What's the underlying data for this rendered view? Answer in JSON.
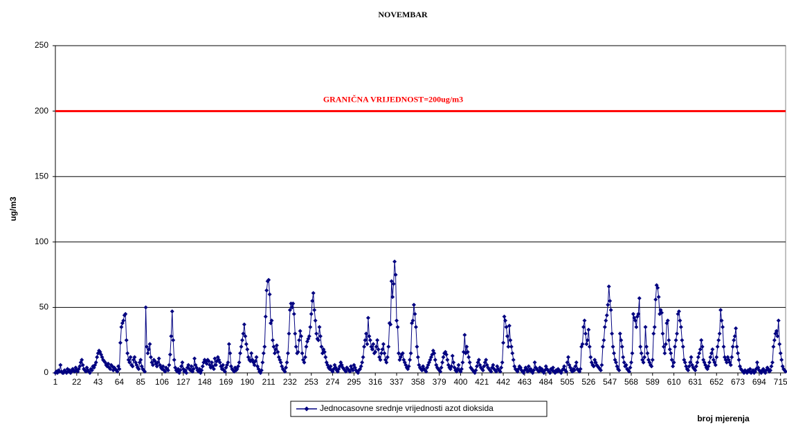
{
  "chart_data": {
    "type": "line",
    "title": "NOVEMBAR",
    "y_label": "ug/m3",
    "x_label": "broj mjerenja",
    "xlim": [
      1,
      720
    ],
    "xticks": [
      1,
      22,
      43,
      64,
      85,
      106,
      127,
      148,
      169,
      190,
      211,
      232,
      253,
      274,
      295,
      316,
      337,
      358,
      379,
      400,
      421,
      442,
      463,
      484,
      505,
      526,
      547,
      568,
      589,
      610,
      631,
      652,
      673,
      694,
      715
    ],
    "ylim": [
      0,
      250
    ],
    "yticks": [
      0,
      50,
      100,
      150,
      200,
      250
    ],
    "grid": true,
    "hlines": [
      {
        "value": 200,
        "label": "GRANIČNA VRIJEDNOST=200ug/m3",
        "color": "#ff0000"
      }
    ],
    "legend": "bottom",
    "x": [
      1,
      2,
      3,
      4,
      5,
      6,
      7,
      8,
      9,
      10,
      11,
      12,
      13,
      14,
      15,
      16,
      17,
      18,
      19,
      20,
      21,
      22,
      23,
      24,
      25,
      26,
      27,
      28,
      29,
      30,
      31,
      32,
      33,
      34,
      35,
      36,
      37,
      38,
      39,
      40,
      41,
      42,
      43,
      44,
      45,
      46,
      47,
      48,
      49,
      50,
      51,
      52,
      53,
      54,
      55,
      56,
      57,
      58,
      59,
      60,
      61,
      62,
      63,
      64,
      65,
      66,
      67,
      68,
      69,
      70,
      71,
      72,
      73,
      74,
      75,
      76,
      77,
      78,
      79,
      80,
      81,
      82,
      83,
      84,
      85,
      86,
      87,
      88,
      89,
      90,
      91,
      92,
      93,
      94,
      95,
      96,
      97,
      98,
      99,
      100,
      101,
      102,
      103,
      104,
      105,
      106,
      107,
      108,
      109,
      110,
      111,
      112,
      113,
      114,
      115,
      116,
      117,
      118,
      119,
      120,
      121,
      122,
      123,
      124,
      125,
      126,
      127,
      128,
      129,
      130,
      131,
      132,
      133,
      134,
      135,
      136,
      137,
      138,
      139,
      140,
      141,
      142,
      143,
      144,
      145,
      146,
      147,
      148,
      149,
      150,
      151,
      152,
      153,
      154,
      155,
      156,
      157,
      158,
      159,
      160,
      161,
      162,
      163,
      164,
      165,
      166,
      167,
      168,
      169,
      170,
      171,
      172,
      173,
      174,
      175,
      176,
      177,
      178,
      179,
      180,
      181,
      182,
      183,
      184,
      185,
      186,
      187,
      188,
      189,
      190,
      191,
      192,
      193,
      194,
      195,
      196,
      197,
      198,
      199,
      200,
      201,
      202,
      203,
      204,
      205,
      206,
      207,
      208,
      209,
      210,
      211,
      212,
      213,
      214,
      215,
      216,
      217,
      218,
      219,
      220,
      221,
      222,
      223,
      224,
      225,
      226,
      227,
      228,
      229,
      230,
      231,
      232,
      233,
      234,
      235,
      236,
      237,
      238,
      239,
      240,
      241,
      242,
      243,
      244,
      245,
      246,
      247,
      248,
      249,
      250,
      251,
      252,
      253,
      254,
      255,
      256,
      257,
      258,
      259,
      260,
      261,
      262,
      263,
      264,
      265,
      266,
      267,
      268,
      269,
      270,
      271,
      272,
      273,
      274,
      275,
      276,
      277,
      278,
      279,
      280,
      281,
      282,
      283,
      284,
      285,
      286,
      287,
      288,
      289,
      290,
      291,
      292,
      293,
      294,
      295,
      296,
      297,
      298,
      299,
      300,
      301,
      302,
      303,
      304,
      305,
      306,
      307,
      308,
      309,
      310,
      311,
      312,
      313,
      314,
      315,
      316,
      317,
      318,
      319,
      320,
      321,
      322,
      323,
      324,
      325,
      326,
      327,
      328,
      329,
      330,
      331,
      332,
      333,
      334,
      335,
      336,
      337,
      338,
      339,
      340,
      341,
      342,
      343,
      344,
      345,
      346,
      347,
      348,
      349,
      350,
      351,
      352,
      353,
      354,
      355,
      356,
      357,
      358,
      359,
      360,
      361,
      362,
      363,
      364,
      365,
      366,
      367,
      368,
      369,
      370,
      371,
      372,
      373,
      374,
      375,
      376,
      377,
      378,
      379,
      380,
      381,
      382,
      383,
      384,
      385,
      386,
      387,
      388,
      389,
      390,
      391,
      392,
      393,
      394,
      395,
      396,
      397,
      398,
      399,
      400,
      401,
      402,
      403,
      404,
      405,
      406,
      407,
      408,
      409,
      410,
      411,
      412,
      413,
      414,
      415,
      416,
      417,
      418,
      419,
      420,
      421,
      422,
      423,
      424,
      425,
      426,
      427,
      428,
      429,
      430,
      431,
      432,
      433,
      434,
      435,
      436,
      437,
      438,
      439,
      440,
      441,
      442,
      443,
      444,
      445,
      446,
      447,
      448,
      449,
      450,
      451,
      452,
      453,
      454,
      455,
      456,
      457,
      458,
      459,
      460,
      461,
      462,
      463,
      464,
      465,
      466,
      467,
      468,
      469,
      470,
      471,
      472,
      473,
      474,
      475,
      476,
      477,
      478,
      479,
      480,
      481,
      482,
      483,
      484,
      485,
      486,
      487,
      488,
      489,
      490,
      491,
      492,
      493,
      494,
      495,
      496,
      497,
      498,
      499,
      500,
      501,
      502,
      503,
      504,
      505,
      506,
      507,
      508,
      509,
      510,
      511,
      512,
      513,
      514,
      515,
      516,
      517,
      518,
      519,
      520,
      521,
      522,
      523,
      524,
      525,
      526,
      527,
      528,
      529,
      530,
      531,
      532,
      533,
      534,
      535,
      536,
      537,
      538,
      539,
      540,
      541,
      542,
      543,
      544,
      545,
      546,
      547,
      548,
      549,
      550,
      551,
      552,
      553,
      554,
      555,
      556,
      557,
      558,
      559,
      560,
      561,
      562,
      563,
      564,
      565,
      566,
      567,
      568,
      569,
      570,
      571,
      572,
      573,
      574,
      575,
      576,
      577,
      578,
      579,
      580,
      581,
      582,
      583,
      584,
      585,
      586,
      587,
      588,
      589,
      590,
      591,
      592,
      593,
      594,
      595,
      596,
      597,
      598,
      599,
      600,
      601,
      602,
      603,
      604,
      605,
      606,
      607,
      608,
      609,
      610,
      611,
      612,
      613,
      614,
      615,
      616,
      617,
      618,
      619,
      620,
      621,
      622,
      623,
      624,
      625,
      626,
      627,
      628,
      629,
      630,
      631,
      632,
      633,
      634,
      635,
      636,
      637,
      638,
      639,
      640,
      641,
      642,
      643,
      644,
      645,
      646,
      647,
      648,
      649,
      650,
      651,
      652,
      653,
      654,
      655,
      656,
      657,
      658,
      659,
      660,
      661,
      662,
      663,
      664,
      665,
      666,
      667,
      668,
      669,
      670,
      671,
      672,
      673,
      674,
      675,
      676,
      677,
      678,
      679,
      680,
      681,
      682,
      683,
      684,
      685,
      686,
      687,
      688,
      689,
      690,
      691,
      692,
      693,
      694,
      695,
      696,
      697,
      698,
      699,
      700,
      701,
      702,
      703,
      704,
      705,
      706,
      707,
      708,
      709,
      710,
      711,
      712,
      713,
      714,
      715,
      716,
      717,
      718,
      719,
      720
    ],
    "series": [
      {
        "name": "Jednocasovne srednje vrijednosti azot dioksida",
        "color": "#000080",
        "values": [
          0,
          1,
          0,
          2,
          1,
          6,
          1,
          0,
          0,
          2,
          1,
          0,
          3,
          1,
          2,
          0,
          1,
          3,
          2,
          1,
          4,
          2,
          1,
          3,
          5,
          8,
          10,
          6,
          3,
          2,
          1,
          4,
          2,
          1,
          0,
          3,
          2,
          5,
          4,
          6,
          8,
          12,
          15,
          17,
          16,
          14,
          12,
          10,
          9,
          8,
          6,
          5,
          7,
          4,
          3,
          6,
          5,
          2,
          4,
          3,
          2,
          1,
          5,
          3,
          23,
          35,
          38,
          40,
          44,
          45,
          25,
          15,
          10,
          8,
          12,
          6,
          5,
          10,
          12,
          8,
          6,
          4,
          3,
          8,
          10,
          5,
          3,
          2,
          1,
          50,
          20,
          15,
          18,
          22,
          12,
          8,
          6,
          10,
          9,
          7,
          5,
          8,
          11,
          6,
          4,
          3,
          5,
          2,
          1,
          4,
          3,
          2,
          6,
          14,
          28,
          47,
          25,
          10,
          4,
          2,
          1,
          3,
          0,
          2,
          5,
          8,
          3,
          1,
          2,
          0,
          4,
          6,
          3,
          2,
          5,
          1,
          3,
          11,
          6,
          4,
          2,
          1,
          3,
          0,
          2,
          5,
          8,
          10,
          9,
          7,
          10,
          9,
          6,
          4,
          8,
          5,
          3,
          11,
          6,
          9,
          12,
          10,
          8,
          5,
          3,
          6,
          2,
          1,
          4,
          6,
          8,
          22,
          15,
          5,
          3,
          2,
          1,
          4,
          2,
          3,
          5,
          8,
          15,
          20,
          25,
          30,
          37,
          28,
          22,
          18,
          12,
          10,
          9,
          15,
          10,
          8,
          6,
          9,
          12,
          5,
          3,
          1,
          0,
          2,
          8,
          15,
          20,
          43,
          63,
          70,
          71,
          60,
          38,
          40,
          25,
          20,
          15,
          18,
          21,
          16,
          12,
          10,
          8,
          5,
          3,
          2,
          1,
          4,
          8,
          15,
          30,
          48,
          53,
          50,
          53,
          45,
          30,
          20,
          15,
          16,
          25,
          32,
          28,
          15,
          10,
          8,
          12,
          20,
          24,
          26,
          28,
          35,
          45,
          55,
          61,
          48,
          40,
          30,
          26,
          25,
          35,
          28,
          20,
          15,
          18,
          16,
          12,
          8,
          6,
          4,
          3,
          5,
          2,
          1,
          3,
          6,
          4,
          2,
          1,
          3,
          5,
          8,
          6,
          4,
          3,
          2,
          1,
          4,
          3,
          2,
          1,
          5,
          3,
          2,
          6,
          4,
          2,
          1,
          0,
          2,
          3,
          5,
          8,
          12,
          20,
          25,
          30,
          22,
          42,
          28,
          25,
          20,
          18,
          22,
          15,
          16,
          20,
          25,
          18,
          12,
          10,
          15,
          18,
          22,
          15,
          10,
          8,
          12,
          20,
          38,
          37,
          70,
          58,
          68,
          85,
          75,
          40,
          35,
          15,
          10,
          12,
          14,
          15,
          10,
          8,
          6,
          4,
          3,
          5,
          10,
          15,
          38,
          40,
          52,
          45,
          35,
          20,
          12,
          6,
          4,
          3,
          2,
          5,
          3,
          2,
          1,
          4,
          6,
          8,
          10,
          12,
          14,
          17,
          15,
          10,
          6,
          4,
          3,
          2,
          1,
          4,
          8,
          12,
          15,
          16,
          14,
          10,
          6,
          4,
          3,
          5,
          13,
          8,
          4,
          2,
          1,
          3,
          6,
          2,
          1,
          3,
          8,
          16,
          29,
          15,
          20,
          16,
          12,
          8,
          4,
          3,
          2,
          1,
          0,
          2,
          5,
          8,
          10,
          6,
          4,
          3,
          2,
          5,
          8,
          10,
          6,
          4,
          3,
          2,
          1,
          4,
          6,
          3,
          2,
          1,
          5,
          3,
          2,
          1,
          4,
          8,
          23,
          43,
          40,
          35,
          28,
          20,
          36,
          25,
          20,
          15,
          10,
          5,
          3,
          2,
          1,
          3,
          5,
          4,
          2,
          1,
          0,
          2,
          4,
          3,
          1,
          5,
          2,
          3,
          1,
          0,
          2,
          8,
          4,
          3,
          2,
          1,
          4,
          2,
          3,
          1,
          0,
          2,
          5,
          3,
          2,
          1,
          0,
          3,
          2,
          4,
          1,
          0,
          2,
          1,
          3,
          2,
          1,
          0,
          2,
          3,
          5,
          2,
          1,
          8,
          12,
          6,
          4,
          2,
          1,
          3,
          2,
          5,
          8,
          3,
          2,
          1,
          3,
          20,
          22,
          35,
          40,
          30,
          22,
          25,
          33,
          20,
          12,
          8,
          6,
          5,
          10,
          8,
          6,
          5,
          4,
          3,
          2,
          6,
          20,
          25,
          35,
          40,
          44,
          52,
          66,
          55,
          48,
          30,
          20,
          15,
          10,
          8,
          5,
          3,
          2,
          30,
          25,
          20,
          12,
          8,
          5,
          6,
          3,
          2,
          1,
          4,
          8,
          15,
          45,
          42,
          40,
          35,
          43,
          45,
          57,
          20,
          15,
          10,
          8,
          12,
          35,
          20,
          15,
          10,
          8,
          6,
          5,
          10,
          30,
          35,
          56,
          67,
          65,
          58,
          45,
          48,
          46,
          30,
          20,
          15,
          22,
          38,
          40,
          25,
          18,
          15,
          10,
          5,
          8,
          20,
          25,
          30,
          45,
          47,
          40,
          35,
          25,
          20,
          10,
          8,
          5,
          3,
          2,
          5,
          8,
          12,
          6,
          4,
          3,
          2,
          5,
          8,
          12,
          15,
          18,
          25,
          20,
          10,
          8,
          6,
          4,
          3,
          5,
          8,
          12,
          15,
          18,
          10,
          8,
          6,
          12,
          20,
          25,
          30,
          48,
          40,
          35,
          20,
          12,
          10,
          8,
          12,
          10,
          8,
          6,
          12,
          20,
          25,
          28,
          34,
          20,
          15,
          10,
          5,
          3,
          2,
          1,
          0,
          2,
          1,
          0,
          2,
          1,
          3,
          0,
          1,
          2,
          0,
          1,
          3,
          8,
          4,
          2,
          1,
          0,
          2,
          3,
          1,
          0,
          2,
          4,
          3,
          1,
          2,
          5,
          8,
          20,
          25,
          30,
          32,
          28,
          40,
          22,
          15,
          10,
          5,
          3,
          2,
          1
        ]
      }
    ]
  }
}
